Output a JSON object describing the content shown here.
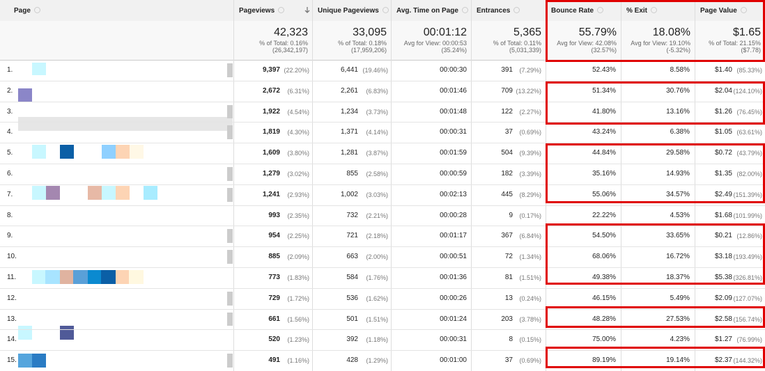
{
  "table": {
    "header": [
      "Page",
      "Pageviews",
      "Unique Pageviews",
      "Avg. Time on Page",
      "Entrances",
      "Bounce Rate",
      "% Exit",
      "Page Value"
    ],
    "totals": [
      [
        "42,323",
        "% of Total: 0.16%",
        "(26,342,197)"
      ],
      [
        "33,095",
        "% of Total: 0.18%",
        "(17,959,206)"
      ],
      [
        "00:01:12",
        "Avg for View: 00:00:53",
        "(35.24%)"
      ],
      [
        "5,365",
        "% of Total: 0.11%",
        "(5,031,339)"
      ],
      [
        "55.79%",
        "Avg for View: 42.08%",
        "(32.57%)"
      ],
      [
        "18.08%",
        "Avg for View: 19.10%",
        "(-5.32%)"
      ],
      [
        "$1.65",
        "% of Total: 21.15%",
        "($7.78)"
      ]
    ],
    "rows": [
      [
        "1.",
        "9,397",
        "(22.20%)",
        "6,441",
        "(19.46%)",
        "00:00:30",
        "391",
        "(7.29%)",
        "52.43%",
        "8.58%",
        "$1.40",
        "(85.33%)"
      ],
      [
        "2.",
        "2,672",
        "(6.31%)",
        "2,261",
        "(6.83%)",
        "00:01:46",
        "709",
        "(13.22%)",
        "51.34%",
        "30.76%",
        "$2.04",
        "(124.10%)"
      ],
      [
        "3.",
        "1,922",
        "(4.54%)",
        "1,234",
        "(3.73%)",
        "00:01:48",
        "122",
        "(2.27%)",
        "41.80%",
        "13.16%",
        "$1.26",
        "(76.45%)"
      ],
      [
        "4.",
        "1,819",
        "(4.30%)",
        "1,371",
        "(4.14%)",
        "00:00:31",
        "37",
        "(0.69%)",
        "43.24%",
        "6.38%",
        "$1.05",
        "(63.61%)"
      ],
      [
        "5.",
        "1,609",
        "(3.80%)",
        "1,281",
        "(3.87%)",
        "00:01:59",
        "504",
        "(9.39%)",
        "44.84%",
        "29.58%",
        "$0.72",
        "(43.79%)"
      ],
      [
        "6.",
        "1,279",
        "(3.02%)",
        "855",
        "(2.58%)",
        "00:00:59",
        "182",
        "(3.39%)",
        "35.16%",
        "14.93%",
        "$1.35",
        "(82.00%)"
      ],
      [
        "7.",
        "1,241",
        "(2.93%)",
        "1,002",
        "(3.03%)",
        "00:02:13",
        "445",
        "(8.29%)",
        "55.06%",
        "34.57%",
        "$2.49",
        "(151.39%)"
      ],
      [
        "8.",
        "993",
        "(2.35%)",
        "732",
        "(2.21%)",
        "00:00:28",
        "9",
        "(0.17%)",
        "22.22%",
        "4.53%",
        "$1.68",
        "(101.99%)"
      ],
      [
        "9.",
        "954",
        "(2.25%)",
        "721",
        "(2.18%)",
        "00:01:17",
        "367",
        "(6.84%)",
        "54.50%",
        "33.65%",
        "$0.21",
        "(12.86%)"
      ],
      [
        "10.",
        "885",
        "(2.09%)",
        "663",
        "(2.00%)",
        "00:00:51",
        "72",
        "(1.34%)",
        "68.06%",
        "16.72%",
        "$3.18",
        "(193.49%)"
      ],
      [
        "11.",
        "773",
        "(1.83%)",
        "584",
        "(1.76%)",
        "00:01:36",
        "81",
        "(1.51%)",
        "49.38%",
        "18.37%",
        "$5.38",
        "(326.81%)"
      ],
      [
        "12.",
        "729",
        "(1.72%)",
        "536",
        "(1.62%)",
        "00:00:26",
        "13",
        "(0.24%)",
        "46.15%",
        "5.49%",
        "$2.09",
        "(127.07%)"
      ],
      [
        "13.",
        "661",
        "(1.56%)",
        "501",
        "(1.51%)",
        "00:01:24",
        "203",
        "(3.78%)",
        "48.28%",
        "27.53%",
        "$2.58",
        "(156.74%)"
      ],
      [
        "14.",
        "520",
        "(1.23%)",
        "392",
        "(1.18%)",
        "00:00:31",
        "8",
        "(0.15%)",
        "75.00%",
        "4.23%",
        "$1.27",
        "(76.99%)"
      ],
      [
        "15.",
        "491",
        "(1.16%)",
        "428",
        "(1.29%)",
        "00:01:00",
        "37",
        "(0.69%)",
        "89.19%",
        "19.14%",
        "$2.37",
        "(144.32%)"
      ]
    ]
  }
}
